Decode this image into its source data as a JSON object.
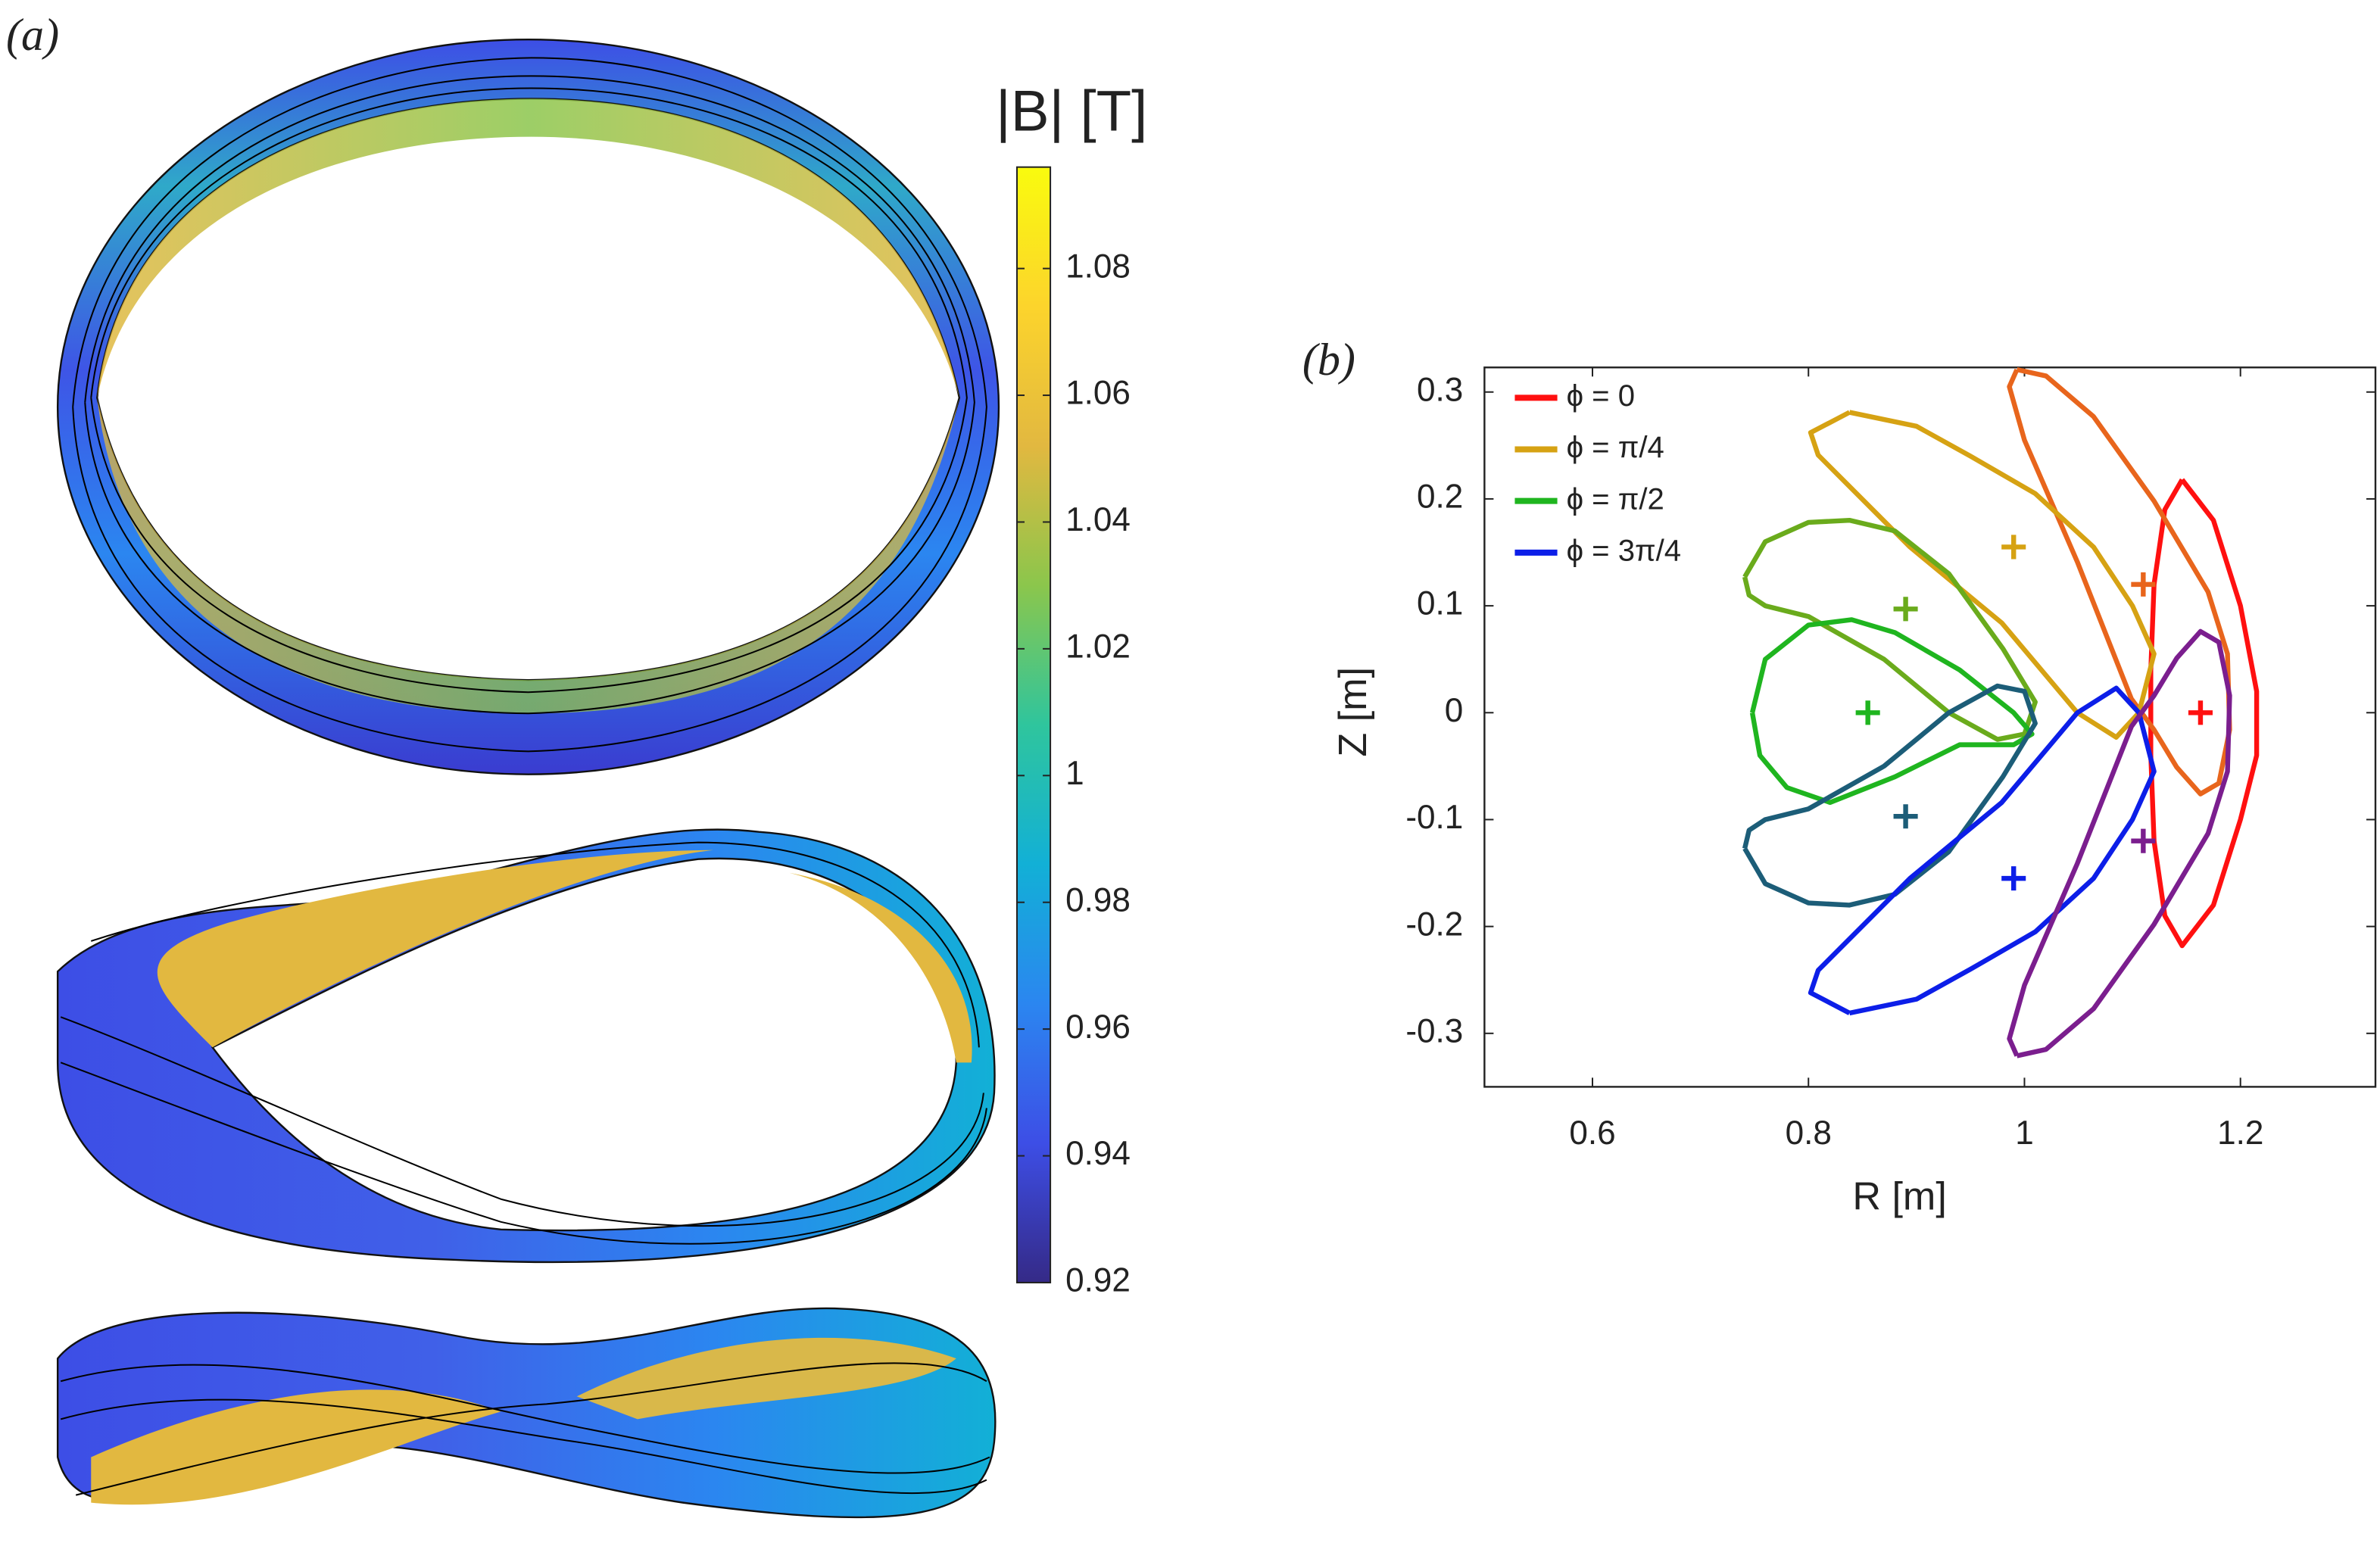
{
  "chart_data": [
    {
      "type": "colorbar",
      "panel_label": "(a)",
      "title": "|B| [T]",
      "colormap": [
        "#352a87",
        "#3d4ee6",
        "#2b86f0",
        "#12b0d6",
        "#2fc59d",
        "#8bc64c",
        "#e2b840",
        "#fcd42c",
        "#f9fb0e"
      ],
      "ylim": [
        0.92,
        1.096
      ],
      "yticks": [
        0.92,
        0.94,
        0.96,
        0.98,
        1,
        1.02,
        1.04,
        1.06,
        1.08
      ]
    },
    {
      "type": "line",
      "panel_label": "(b)",
      "x_label": "R [m]",
      "y_label": "Z [m]",
      "xlim": [
        0.5,
        1.325
      ],
      "ylim": [
        -0.35,
        0.323
      ],
      "xticks": [
        0.6,
        0.8,
        1,
        1.2
      ],
      "yticks": [
        -0.3,
        -0.2,
        -0.1,
        0,
        0.1,
        0.2,
        0.3
      ],
      "legend": "upper left",
      "series": [
        {
          "name": "ϕ = 0",
          "color": "#ff1010",
          "x": [
            1.146,
            1.175,
            1.2,
            1.215,
            1.215,
            1.2,
            1.175,
            1.146,
            1.13,
            1.12,
            1.117,
            1.117,
            1.12,
            1.13,
            1.146
          ],
          "values": [
            0.218,
            0.18,
            0.1,
            0.02,
            -0.04,
            -0.1,
            -0.18,
            -0.218,
            -0.19,
            -0.12,
            -0.04,
            0.04,
            0.12,
            0.19,
            0.218
          ],
          "center_x": 1.163,
          "center_y": 0
        },
        {
          "color": "#e8651c",
          "x": [
            0.993,
            1.02,
            1.064,
            1.12,
            1.17,
            1.188,
            1.19,
            1.18,
            1.163,
            1.141,
            1.12,
            1.099,
            1.049,
            1.0,
            0.986,
            0.993
          ],
          "values": [
            0.321,
            0.315,
            0.277,
            0.198,
            0.113,
            0.055,
            -0.016,
            -0.066,
            -0.076,
            -0.051,
            -0.016,
            0.013,
            0.141,
            0.255,
            0.305,
            0.321
          ],
          "center_x": 1.11,
          "center_y": 0.12
        },
        {
          "name": "ϕ = π/4",
          "color": "#d6a213",
          "x": [
            0.838,
            0.9,
            0.95,
            1.01,
            1.064,
            1.1,
            1.12,
            1.106,
            1.085,
            1.049,
            0.979,
            0.894,
            0.809,
            0.802,
            0.838
          ],
          "values": [
            0.281,
            0.268,
            0.24,
            0.205,
            0.155,
            0.1,
            0.055,
            0,
            -0.023,
            0,
            0.084,
            0.155,
            0.241,
            0.262,
            0.281
          ],
          "center_x": 0.99,
          "center_y": 0.155
        },
        {
          "color": "#6aab1c",
          "x": [
            0.741,
            0.76,
            0.8,
            0.838,
            0.88,
            0.93,
            0.98,
            1.01,
            1.0,
            0.975,
            0.93,
            0.87,
            0.8,
            0.76,
            0.745,
            0.741
          ],
          "values": [
            0.127,
            0.16,
            0.178,
            0.18,
            0.17,
            0.13,
            0.06,
            0.01,
            -0.02,
            -0.025,
            0.0,
            0.05,
            0.09,
            0.1,
            0.11,
            0.127
          ],
          "center_x": 0.89,
          "center_y": 0.097
        },
        {
          "name": "ϕ = π/2",
          "color": "#1fb51f",
          "x": [
            0.748,
            0.76,
            0.8,
            0.84,
            0.88,
            0.94,
            0.99,
            1.007,
            0.99,
            0.94,
            0.88,
            0.82,
            0.78,
            0.755,
            0.748
          ],
          "values": [
            0,
            0.05,
            0.082,
            0.087,
            0.075,
            0.04,
            0.0,
            -0.02,
            -0.03,
            -0.03,
            -0.06,
            -0.084,
            -0.07,
            -0.04,
            0
          ],
          "center_x": 0.855,
          "center_y": 0
        },
        {
          "color": "#1c5d78",
          "x": [
            0.741,
            0.76,
            0.8,
            0.838,
            0.88,
            0.93,
            0.98,
            1.01,
            1.0,
            0.975,
            0.93,
            0.87,
            0.8,
            0.76,
            0.745,
            0.741
          ],
          "values": [
            -0.127,
            -0.16,
            -0.178,
            -0.18,
            -0.17,
            -0.13,
            -0.06,
            -0.01,
            0.02,
            0.025,
            0.0,
            -0.05,
            -0.09,
            -0.1,
            -0.11,
            -0.127
          ],
          "center_x": 0.89,
          "center_y": -0.097
        },
        {
          "name": "ϕ = 3π/4",
          "color": "#0c1ee8",
          "x": [
            0.838,
            0.9,
            0.95,
            1.01,
            1.064,
            1.1,
            1.12,
            1.106,
            1.085,
            1.049,
            0.979,
            0.894,
            0.809,
            0.802,
            0.838
          ],
          "values": [
            -0.281,
            -0.268,
            -0.24,
            -0.205,
            -0.155,
            -0.1,
            -0.055,
            0,
            0.023,
            0,
            -0.084,
            -0.155,
            -0.241,
            -0.262,
            -0.281
          ],
          "center_x": 0.99,
          "center_y": -0.155
        },
        {
          "color": "#7b1e8e",
          "x": [
            0.993,
            1.02,
            1.064,
            1.12,
            1.17,
            1.188,
            1.19,
            1.18,
            1.163,
            1.141,
            1.12,
            1.099,
            1.049,
            1.0,
            0.986,
            0.993
          ],
          "values": [
            -0.321,
            -0.315,
            -0.277,
            -0.198,
            -0.113,
            -0.055,
            0.016,
            0.066,
            0.076,
            0.051,
            0.016,
            -0.013,
            -0.141,
            -0.255,
            -0.305,
            -0.321
          ],
          "center_x": 1.11,
          "center_y": -0.12
        }
      ]
    }
  ]
}
